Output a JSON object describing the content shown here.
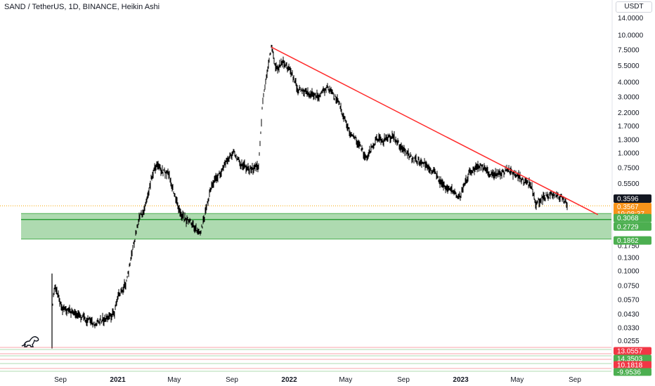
{
  "header": {
    "title": "SAND / TetherUS, 1D, BINANCE, Heikin Ashi",
    "unit": "USDT"
  },
  "colors": {
    "candles": "#000000",
    "trendline": "#ff2a2a",
    "zone_fill": "#a5d6a7",
    "zone_line": "#4caf50",
    "price_line": "#f7a600",
    "badge_red": "#f23645",
    "badge_green": "#4caf50",
    "badge_orange": "#f7931a",
    "badge_black": "#131722"
  },
  "logo": "dinosaur-logo-icon",
  "chart_data": {
    "type": "candlestick",
    "title": "SAND / TetherUS, 1D, BINANCE, Heikin Ashi",
    "y_scale": "log",
    "y_ticks": [
      "14.0000",
      "10.0000",
      "7.5000",
      "5.5000",
      "4.0000",
      "3.0000",
      "2.2000",
      "1.7000",
      "1.3000",
      "1.0000",
      "0.7500",
      "0.5500",
      "0.4000",
      "0.1750",
      "0.1300",
      "0.1000",
      "0.0750",
      "0.0570",
      "0.0430",
      "0.0330",
      "0.0255"
    ],
    "x_ticks": [
      {
        "label": "Sep",
        "bold": false
      },
      {
        "label": "2021",
        "bold": true
      },
      {
        "label": "May",
        "bold": false
      },
      {
        "label": "Sep",
        "bold": false
      },
      {
        "label": "2022",
        "bold": true
      },
      {
        "label": "May",
        "bold": false
      },
      {
        "label": "Sep",
        "bold": false
      },
      {
        "label": "2023",
        "bold": true
      },
      {
        "label": "May",
        "bold": false
      },
      {
        "label": "Sep",
        "bold": false
      }
    ],
    "price_path": [
      [
        "2020-08-15",
        0.052
      ],
      [
        "2020-08-20",
        0.075
      ],
      [
        "2020-09-05",
        0.048
      ],
      [
        "2020-10-10",
        0.042
      ],
      [
        "2020-11-10",
        0.036
      ],
      [
        "2020-12-10",
        0.04
      ],
      [
        "2020-12-25",
        0.044
      ],
      [
        "2021-01-01",
        0.06
      ],
      [
        "2021-01-20",
        0.08
      ],
      [
        "2021-02-01",
        0.15
      ],
      [
        "2021-02-15",
        0.27
      ],
      [
        "2021-02-28",
        0.35
      ],
      [
        "2021-03-15",
        0.65
      ],
      [
        "2021-03-25",
        0.8
      ],
      [
        "2021-04-05",
        0.7
      ],
      [
        "2021-04-20",
        0.65
      ],
      [
        "2021-05-01",
        0.45
      ],
      [
        "2021-05-12",
        0.32
      ],
      [
        "2021-05-25",
        0.27
      ],
      [
        "2021-06-10",
        0.25
      ],
      [
        "2021-06-25",
        0.2
      ],
      [
        "2021-07-05",
        0.29
      ],
      [
        "2021-07-20",
        0.55
      ],
      [
        "2021-08-05",
        0.65
      ],
      [
        "2021-08-20",
        0.85
      ],
      [
        "2021-09-05",
        1.0
      ],
      [
        "2021-09-20",
        0.8
      ],
      [
        "2021-10-10",
        0.72
      ],
      [
        "2021-10-28",
        0.78
      ],
      [
        "2021-11-05",
        2.6
      ],
      [
        "2021-11-15",
        5.0
      ],
      [
        "2021-11-24",
        7.9
      ],
      [
        "2021-12-05",
        5.0
      ],
      [
        "2021-12-20",
        6.0
      ],
      [
        "2022-01-05",
        4.8
      ],
      [
        "2022-01-20",
        3.4
      ],
      [
        "2022-02-10",
        3.3
      ],
      [
        "2022-03-01",
        3.0
      ],
      [
        "2022-03-25",
        3.6
      ],
      [
        "2022-04-15",
        2.7
      ],
      [
        "2022-05-10",
        1.5
      ],
      [
        "2022-05-20",
        1.35
      ],
      [
        "2022-06-15",
        0.9
      ],
      [
        "2022-07-05",
        1.3
      ],
      [
        "2022-07-20",
        1.28
      ],
      [
        "2022-08-10",
        1.38
      ],
      [
        "2022-08-25",
        1.15
      ],
      [
        "2022-09-20",
        0.9
      ],
      [
        "2022-10-20",
        0.8
      ],
      [
        "2022-11-10",
        0.65
      ],
      [
        "2022-11-25",
        0.52
      ],
      [
        "2022-12-15",
        0.48
      ],
      [
        "2022-12-30",
        0.42
      ],
      [
        "2023-01-20",
        0.7
      ],
      [
        "2023-02-10",
        0.78
      ],
      [
        "2023-03-10",
        0.65
      ],
      [
        "2023-04-15",
        0.72
      ],
      [
        "2023-05-15",
        0.58
      ],
      [
        "2023-06-01",
        0.53
      ],
      [
        "2023-06-10",
        0.37
      ],
      [
        "2023-06-25",
        0.42
      ],
      [
        "2023-07-15",
        0.44
      ],
      [
        "2023-08-05",
        0.42
      ],
      [
        "2023-08-17",
        0.3567
      ]
    ],
    "trendline": [
      [
        "2021-11-24",
        7.9
      ],
      [
        "2023-10-20",
        0.3
      ]
    ],
    "support_zone": {
      "top": 0.3068,
      "bottom": 0.1862,
      "line": 0.2729
    },
    "current_price": 0.3567,
    "countdown": "19:08:37",
    "badges": {
      "previous_close": "0.3596",
      "last": "0.3567",
      "countdown": "19:08:37",
      "zone_top": "0.3068",
      "zone_mid": "0.2729",
      "zone_bottom": "0.1862"
    },
    "indicator_badges": [
      {
        "value": "13.0557",
        "color": "red"
      },
      {
        "value": "14.3503",
        "color": "green"
      },
      {
        "value": "10.1818",
        "color": "red"
      },
      {
        "value": "-9.9536",
        "color": "green"
      }
    ]
  }
}
